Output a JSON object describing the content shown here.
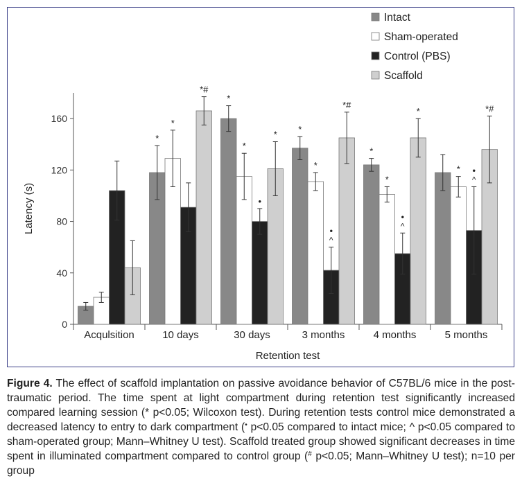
{
  "chart_data": {
    "type": "bar",
    "xlabel": "Retention test",
    "ylabel": "Latency (s)",
    "ylim": [
      0,
      180
    ],
    "yticks": [
      0,
      40,
      80,
      120,
      160
    ],
    "legend_position": "top-right",
    "categories": [
      "Acqulsition",
      "10 days",
      "30 days",
      "3 months",
      "4 months",
      "5 months"
    ],
    "series": [
      {
        "name": "Intact",
        "color": "#888888",
        "values": [
          14,
          118,
          160,
          137,
          124,
          118
        ],
        "errors": [
          3,
          21,
          10,
          9,
          5,
          14
        ],
        "marks": [
          "",
          "*",
          "*",
          "*",
          "*",
          ""
        ]
      },
      {
        "name": "Sham-operated",
        "color": "#ffffff",
        "values": [
          21,
          129,
          115,
          111,
          101,
          107
        ],
        "errors": [
          4,
          22,
          18,
          7,
          6,
          8
        ],
        "marks": [
          "",
          "*",
          "*",
          "*",
          "*",
          "*"
        ]
      },
      {
        "name": "Control (PBS)",
        "color": "#222222",
        "values": [
          104,
          91,
          80,
          42,
          55,
          73
        ],
        "errors": [
          23,
          19,
          10,
          18,
          16,
          34
        ],
        "marks": [
          "",
          "",
          "•",
          "•\n^",
          "•\n^",
          "•\n^"
        ]
      },
      {
        "name": "Scaffold",
        "color": "#cfcfcf",
        "values": [
          44,
          166,
          121,
          145,
          145,
          136
        ],
        "errors": [
          21,
          11,
          21,
          20,
          15,
          26
        ],
        "marks": [
          "",
          "*#",
          "*",
          "*#",
          "*",
          "*#"
        ]
      }
    ]
  },
  "caption": {
    "label": "Figure 4.",
    "p1": " The effect of scaffold implantation on passive avoidance behavior of C57BL/6 mice in the post-traumatic period. The time spent at light compartment during retention test significantly increased compared learning session (* p<0.05; Wilcoxon test). During retention tests control mice demonstrated a decreased latency to entry to dark compartment (",
    "sup1": "•",
    "p2": " p<0.05 compared to intact mice; ^ p<0.05 compared to sham-operated group; Mann–Whitney U test). Scaffold treated group showed significant decreases in time spent in illuminated compartment compared to control group (",
    "sup2": "#",
    "p3": " p<0.05; Mann–Whitney U test); n=10 per group"
  }
}
